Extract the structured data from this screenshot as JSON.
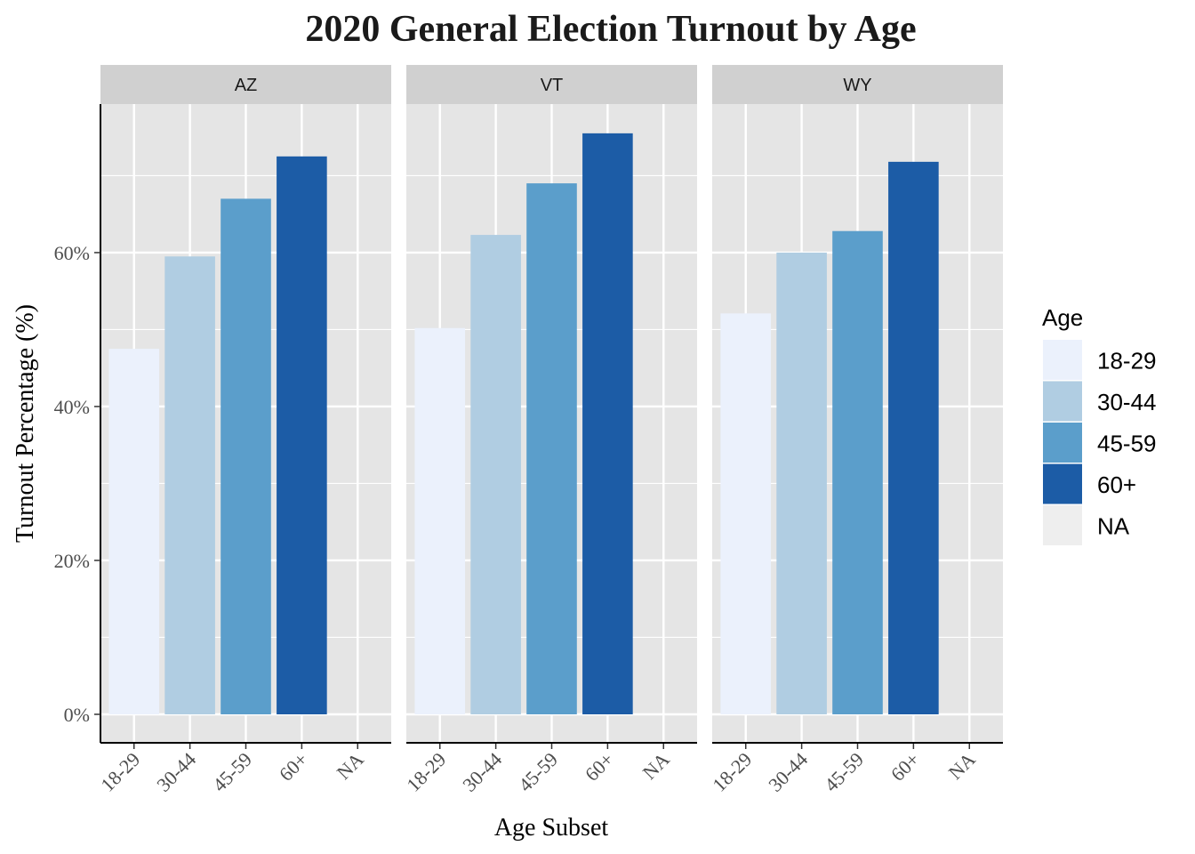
{
  "chart_data": {
    "type": "bar",
    "title": "2020 General Election Turnout by Age",
    "xlabel": "Age Subset",
    "ylabel": "Turnout Percentage (%)",
    "categories": [
      "18-29",
      "30-44",
      "45-59",
      "60+",
      "NA"
    ],
    "yticks": [
      0,
      20,
      40,
      60
    ],
    "ytick_labels": [
      "0%",
      "20%",
      "40%",
      "60%"
    ],
    "ylim": [
      -3.7,
      79.3
    ],
    "grid": true,
    "facets": [
      {
        "label": "AZ",
        "values": [
          47.5,
          59.5,
          67.0,
          72.5,
          null
        ]
      },
      {
        "label": "VT",
        "values": [
          50.2,
          62.3,
          69.0,
          75.5,
          null
        ]
      },
      {
        "label": "WY",
        "values": [
          52.1,
          60.0,
          62.8,
          71.8,
          null
        ]
      }
    ],
    "legend": {
      "title": "Age",
      "position": "right",
      "items": [
        {
          "label": "18-29",
          "color": "#EBF1FC"
        },
        {
          "label": "30-44",
          "color": "#B0CDE2"
        },
        {
          "label": "45-59",
          "color": "#5B9ECB"
        },
        {
          "label": "60+",
          "color": "#1C5CA6"
        },
        {
          "label": "NA",
          "color": "#EEEEEE"
        }
      ]
    },
    "colors": {
      "panel_background": "#E5E5E5",
      "grid": "#FFFFFF",
      "strip_background": "#D0D0D0",
      "axis_line": "#000000"
    }
  }
}
